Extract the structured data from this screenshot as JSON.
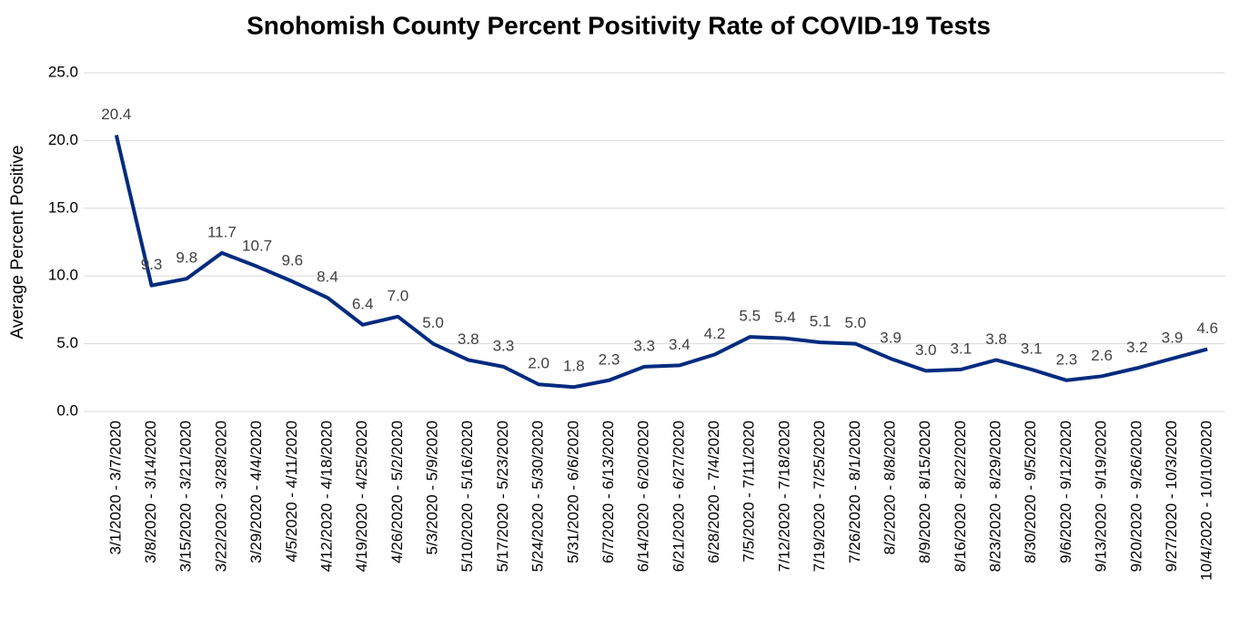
{
  "chart_data": {
    "type": "line",
    "title": "Snohomish County Percent Positivity Rate of COVID-19 Tests",
    "y_label": "Average Percent Positive",
    "categories": [
      "3/1/2020 - 3/7/2020",
      "3/8/2020 - 3/14/2020",
      "3/15/2020 - 3/21/2020",
      "3/22/2020 - 3/28/2020",
      "3/29/2020 - 4/4/2020",
      "4/5/2020 - 4/11/2020",
      "4/12/2020 - 4/18/2020",
      "4/19/2020 - 4/25/2020",
      "4/26/2020 - 5/2/2020",
      "5/3/2020 - 5/9/2020",
      "5/10/2020 - 5/16/2020",
      "5/17/2020 - 5/23/2020",
      "5/24/2020 - 5/30/2020",
      "5/31/2020 - 6/6/2020",
      "6/7/2020 - 6/13/2020",
      "6/14/2020 - 6/20/2020",
      "6/21/2020 - 6/27/2020",
      "6/28/2020 - 7/4/2020",
      "7/5/2020 - 7/11/2020",
      "7/12/2020 - 7/18/2020",
      "7/19/2020 - 7/25/2020",
      "7/26/2020 - 8/1/2020",
      "8/2/2020 - 8/8/2020",
      "8/9/2020 - 8/15/2020",
      "8/16/2020 - 8/22/2020",
      "8/23/2020 - 8/29/2020",
      "8/30/2020 - 9/5/2020",
      "9/6/2020 - 9/12/2020",
      "9/13/2020 - 9/19/2020",
      "9/20/2020 - 9/26/2020",
      "9/27/2020 - 10/3/2020",
      "10/4/2020 - 10/10/2020"
    ],
    "values": [
      20.4,
      9.3,
      9.8,
      11.7,
      10.7,
      9.6,
      8.4,
      6.4,
      7.0,
      5.0,
      3.8,
      3.3,
      2.0,
      1.8,
      2.3,
      3.3,
      3.4,
      4.2,
      5.5,
      5.4,
      5.1,
      5.0,
      3.9,
      3.0,
      3.1,
      3.8,
      3.1,
      2.3,
      2.6,
      3.2,
      3.9,
      4.6
    ],
    "value_labels": [
      "20.4",
      "9.3",
      "9.8",
      "11.7",
      "10.7",
      "9.6",
      "8.4",
      "6.4",
      "7.0",
      "5.0",
      "3.8",
      "3.3",
      "2.0",
      "1.8",
      "2.3",
      "3.3",
      "3.4",
      "4.2",
      "5.5",
      "5.4",
      "5.1",
      "5.0",
      "3.9",
      "3.0",
      "3.1",
      "3.8",
      "3.1",
      "2.3",
      "2.6",
      "3.2",
      "3.9",
      "4.6"
    ],
    "color": "#002b7f",
    "ylim": [
      0,
      25
    ],
    "yticks": [
      {
        "value": 0,
        "label": "0.0"
      },
      {
        "value": 5,
        "label": "5.0"
      },
      {
        "value": 10,
        "label": "10.0"
      },
      {
        "value": 15,
        "label": "15.0"
      },
      {
        "value": 20,
        "label": "20.0"
      },
      {
        "value": 25,
        "label": "25.0"
      }
    ],
    "grid": true
  }
}
